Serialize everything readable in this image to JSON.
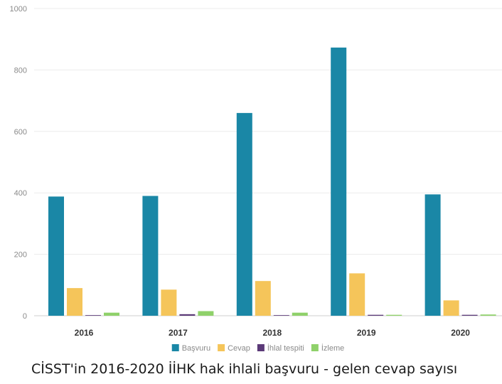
{
  "caption": "CİSST'in 2016-2020 İİHK hak ihlali başvuru - gelen cevap sayısı",
  "chart_data": {
    "type": "bar",
    "categories": [
      "2016",
      "2017",
      "2018",
      "2019",
      "2020"
    ],
    "series": [
      {
        "name": "Başvuru",
        "color": "#1a87a6",
        "values": [
          388,
          390,
          660,
          873,
          395
        ]
      },
      {
        "name": "Cevap",
        "color": "#f5c55a",
        "values": [
          90,
          85,
          113,
          138,
          50
        ]
      },
      {
        "name": "İhlal tespiti",
        "color": "#5b3a78",
        "values": [
          2,
          5,
          2,
          3,
          3
        ]
      },
      {
        "name": "İzleme",
        "color": "#8fd16a",
        "values": [
          10,
          15,
          10,
          3,
          4
        ]
      }
    ],
    "yticks": [
      0,
      200,
      400,
      600,
      800,
      1000
    ],
    "ylim": [
      0,
      1000
    ],
    "grid": true,
    "legend": "bottom-center"
  }
}
